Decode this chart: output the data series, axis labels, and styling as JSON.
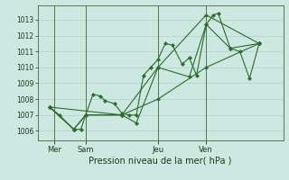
{
  "background_color": "#cce8e0",
  "grid_color": "#aacccc",
  "line_color": "#2d6b2d",
  "marker_color": "#2d6b2d",
  "title": "Pression niveau de la mer( hPa )",
  "yticks": [
    1006,
    1007,
    1008,
    1009,
    1010,
    1011,
    1012,
    1013
  ],
  "ylim": [
    1005.4,
    1013.9
  ],
  "xlim": [
    0.0,
    1.02
  ],
  "day_labels": [
    "Mer",
    "Sam",
    "Jeu",
    "Ven"
  ],
  "day_positions": [
    0.07,
    0.2,
    0.5,
    0.7
  ],
  "series": [
    [
      0.05,
      1007.5,
      0.09,
      1007.0,
      0.15,
      1006.1,
      0.18,
      1006.1,
      0.2,
      1007.0,
      0.23,
      1008.3,
      0.26,
      1008.2,
      0.28,
      1007.9,
      0.32,
      1007.7,
      0.35,
      1007.1,
      0.38,
      1007.0,
      0.41,
      1007.0,
      0.44,
      1009.5,
      0.47,
      1010.0,
      0.5,
      1010.5,
      0.53,
      1011.5,
      0.56,
      1011.4,
      0.6,
      1010.2,
      0.63,
      1010.6,
      0.66,
      1009.5,
      0.7,
      1012.7,
      0.73,
      1013.3,
      0.75,
      1013.4,
      0.8,
      1011.2,
      0.84,
      1011.0,
      0.88,
      1009.3,
      0.92,
      1011.5
    ],
    [
      0.05,
      1007.5,
      0.15,
      1006.1,
      0.2,
      1007.0,
      0.35,
      1007.0,
      0.41,
      1006.5,
      0.5,
      1010.0,
      0.63,
      1009.4,
      0.7,
      1012.7,
      0.8,
      1011.2,
      0.92,
      1011.5
    ],
    [
      0.05,
      1007.5,
      0.15,
      1006.1,
      0.2,
      1007.0,
      0.35,
      1007.0,
      0.5,
      1010.0,
      0.7,
      1013.3,
      0.92,
      1011.5
    ],
    [
      0.05,
      1007.5,
      0.35,
      1007.0,
      0.5,
      1008.0,
      0.7,
      1010.0,
      0.92,
      1011.5
    ]
  ]
}
